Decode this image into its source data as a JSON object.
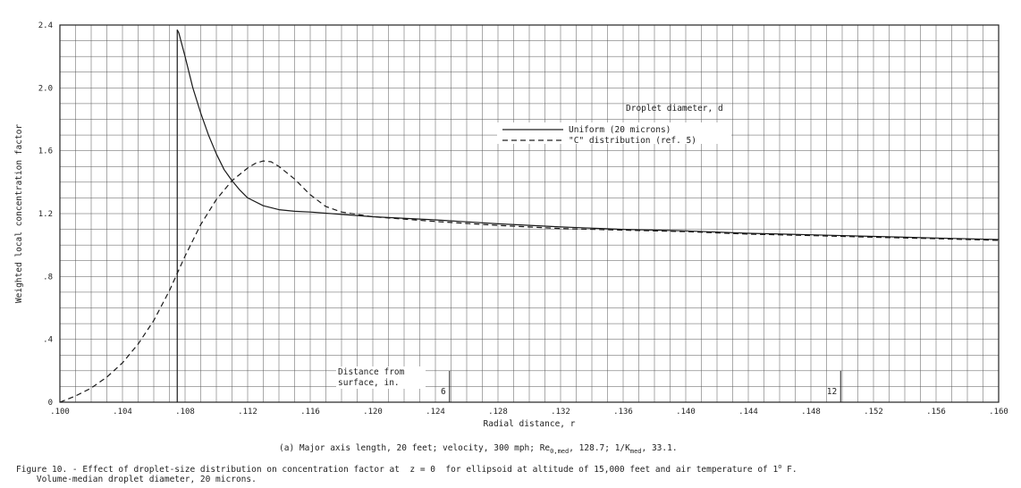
{
  "chart_data": {
    "type": "line",
    "xlabel": "Radial distance, r",
    "ylabel": "Weighted local concentration factor",
    "xlim": [
      0.1,
      0.16
    ],
    "ylim": [
      0,
      2.4
    ],
    "x_ticks": [
      ".100",
      ".104",
      ".108",
      ".112",
      ".116",
      ".120",
      ".124",
      ".128",
      ".132",
      ".136",
      ".140",
      ".144",
      ".148",
      ".152",
      ".156",
      ".160"
    ],
    "y_ticks": [
      {
        "value": 0,
        "label": "0"
      },
      {
        "value": 0.4,
        "label": ".4"
      },
      {
        "value": 0.8,
        "label": ".8"
      },
      {
        "value": 1.2,
        "label": "1.2"
      },
      {
        "value": 1.6,
        "label": "1.6"
      },
      {
        "value": 2.0,
        "label": "2.0"
      },
      {
        "value": 2.4,
        "label": "2.4"
      }
    ],
    "legend_title": "Droplet diameter, d",
    "series": [
      {
        "name": "Uniform (20 microns)",
        "style": "solid",
        "x": [
          0.1075,
          0.1076,
          0.108,
          0.1085,
          0.109,
          0.1095,
          0.11,
          0.1105,
          0.111,
          0.1115,
          0.112,
          0.113,
          0.114,
          0.115,
          0.116,
          0.118,
          0.12,
          0.124,
          0.128,
          0.132,
          0.136,
          0.14,
          0.144,
          0.148,
          0.152,
          0.156,
          0.16
        ],
        "y": [
          2.37,
          2.35,
          2.2,
          2.0,
          1.84,
          1.7,
          1.58,
          1.48,
          1.41,
          1.35,
          1.3,
          1.25,
          1.225,
          1.215,
          1.21,
          1.195,
          1.18,
          1.16,
          1.135,
          1.115,
          1.1,
          1.09,
          1.075,
          1.065,
          1.055,
          1.045,
          1.035
        ]
      },
      {
        "name": "\"C\" distribution (ref. 5)",
        "style": "dashed",
        "x": [
          0.1,
          0.101,
          0.102,
          0.103,
          0.104,
          0.105,
          0.106,
          0.107,
          0.108,
          0.109,
          0.11,
          0.111,
          0.112,
          0.1125,
          0.113,
          0.1135,
          0.114,
          0.115,
          0.116,
          0.117,
          0.118,
          0.12,
          0.124,
          0.128,
          0.132,
          0.136,
          0.14,
          0.144,
          0.148,
          0.152,
          0.156,
          0.16
        ],
        "y": [
          0.0,
          0.04,
          0.09,
          0.16,
          0.25,
          0.37,
          0.52,
          0.71,
          0.93,
          1.13,
          1.29,
          1.41,
          1.49,
          1.52,
          1.535,
          1.53,
          1.5,
          1.42,
          1.32,
          1.245,
          1.21,
          1.18,
          1.15,
          1.125,
          1.105,
          1.095,
          1.085,
          1.07,
          1.06,
          1.05,
          1.04,
          1.03
        ]
      }
    ],
    "distance_scale": {
      "label_line1": "Distance from",
      "label_line2": "surface, in.",
      "marks": [
        {
          "label": "6",
          "x": 0.1249
        },
        {
          "label": "12",
          "x": 0.1499
        }
      ]
    },
    "grid": true
  },
  "captions": {
    "sub": "(a) Major axis length, 20 feet; velocity, 300 mph; Re₀,med, 128.7; 1/K med, 33.1.",
    "figure_line1": "Figure 10. - Effect of droplet-size distribution on concentration factor at  z = 0  for ellipsoid at altitude of 15,000 feet and air temperature of 1° F.",
    "figure_line2": "    Volume-median droplet diameter, 20 microns."
  }
}
